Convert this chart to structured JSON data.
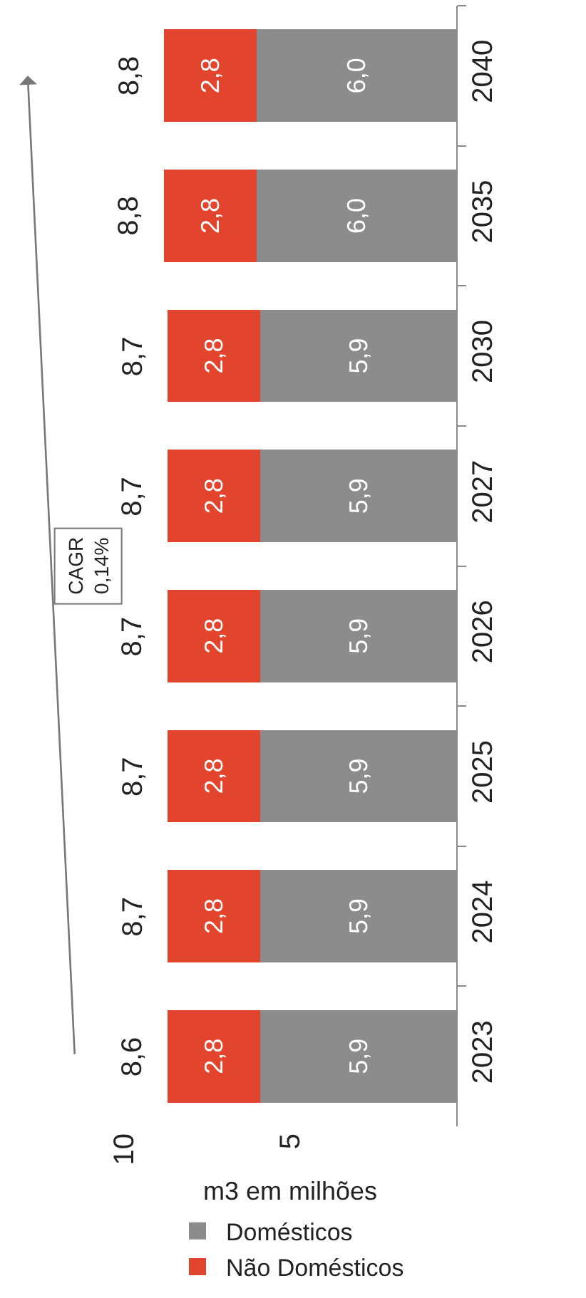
{
  "chart_data": {
    "type": "bar",
    "orientation": "horizontal",
    "stacked": true,
    "xlabel": "m3 em milhões",
    "categories": [
      "2040",
      "2035",
      "2030",
      "2027",
      "2026",
      "2025",
      "2024",
      "2023"
    ],
    "series": [
      {
        "name": "Domésticos",
        "color": "#8c8c8c",
        "values": [
          6.0,
          6.0,
          5.9,
          5.9,
          5.9,
          5.9,
          5.9,
          5.9
        ],
        "value_labels": [
          "6,0",
          "6,0",
          "5,9",
          "5,9",
          "5,9",
          "5,9",
          "5,9",
          "5,9"
        ]
      },
      {
        "name": "Não Domésticos",
        "color": "#e2442d",
        "values": [
          2.8,
          2.8,
          2.8,
          2.8,
          2.8,
          2.8,
          2.8,
          2.8
        ],
        "value_labels": [
          "2,8",
          "2,8",
          "2,8",
          "2,8",
          "2,8",
          "2,8",
          "2,8",
          "2,8"
        ]
      }
    ],
    "totals": [
      "8,8",
      "8,8",
      "8,7",
      "8,7",
      "8,7",
      "8,7",
      "8,7",
      "8,6"
    ],
    "xlim": [
      10,
      0
    ],
    "xticks": [
      5,
      10
    ],
    "annotations": [
      "CAGR\n0,14%"
    ],
    "legend": "bottom"
  }
}
